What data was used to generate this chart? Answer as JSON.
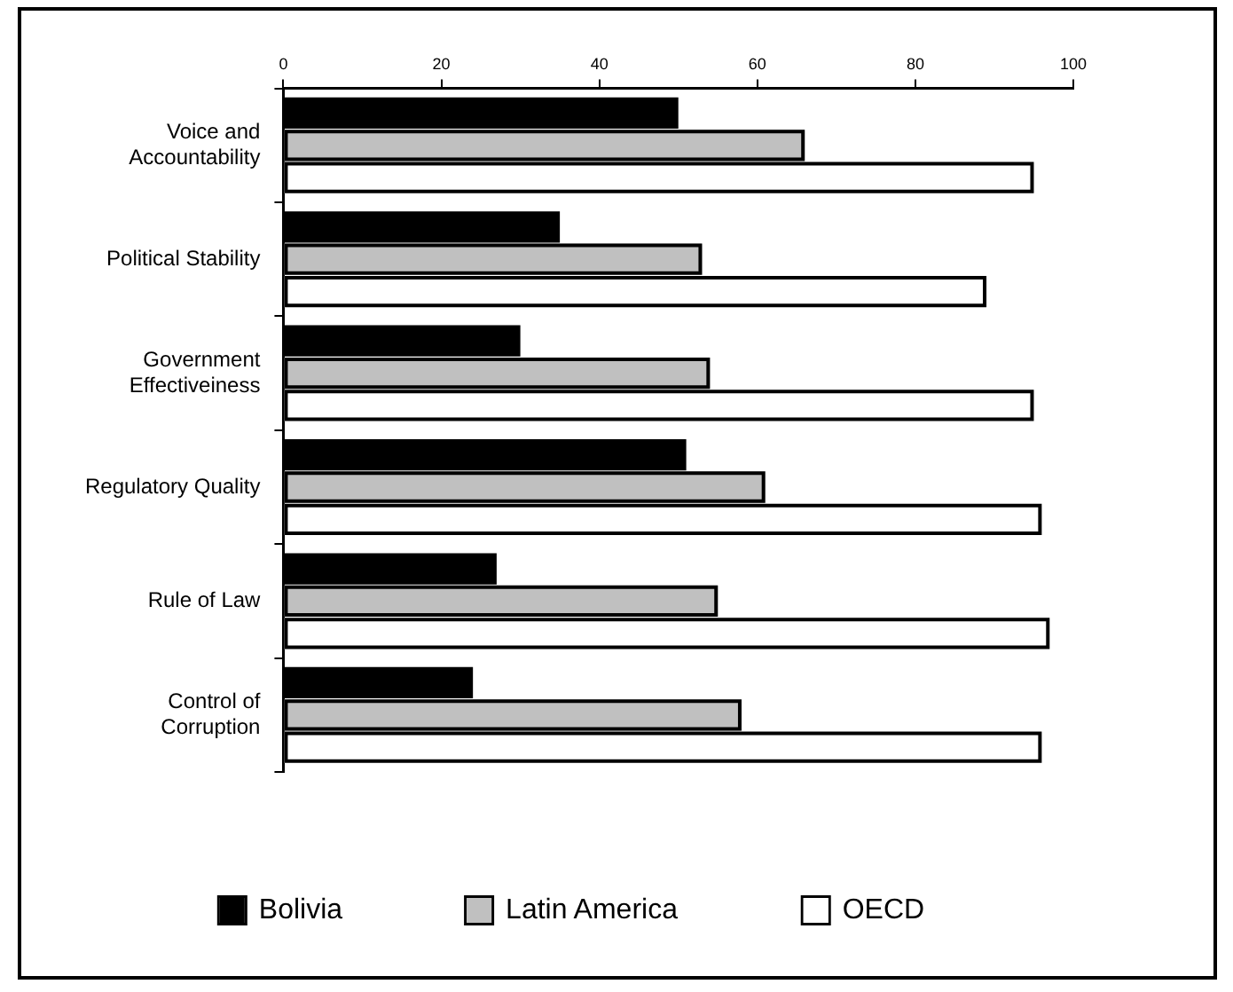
{
  "chart_data": {
    "type": "bar",
    "orientation": "horizontal",
    "categories": [
      "Voice and Accountability",
      "Political Stability",
      "Government Effectiveiness",
      "Regulatory Quality",
      "Rule of Law",
      "Control of Corruption"
    ],
    "series": [
      {
        "name": "Bolivia",
        "color": "#000000",
        "values": [
          50,
          35,
          30,
          51,
          27,
          24
        ]
      },
      {
        "name": "Latin America",
        "color": "#c0c0c0",
        "values": [
          66,
          53,
          54,
          61,
          55,
          58
        ]
      },
      {
        "name": "OECD",
        "color": "#ffffff",
        "values": [
          95,
          89,
          95,
          96,
          97,
          96
        ]
      }
    ],
    "xlim": [
      0,
      100
    ],
    "xticks": [
      0,
      20,
      40,
      60,
      80,
      100
    ],
    "grid": false,
    "legend": "bottom"
  }
}
